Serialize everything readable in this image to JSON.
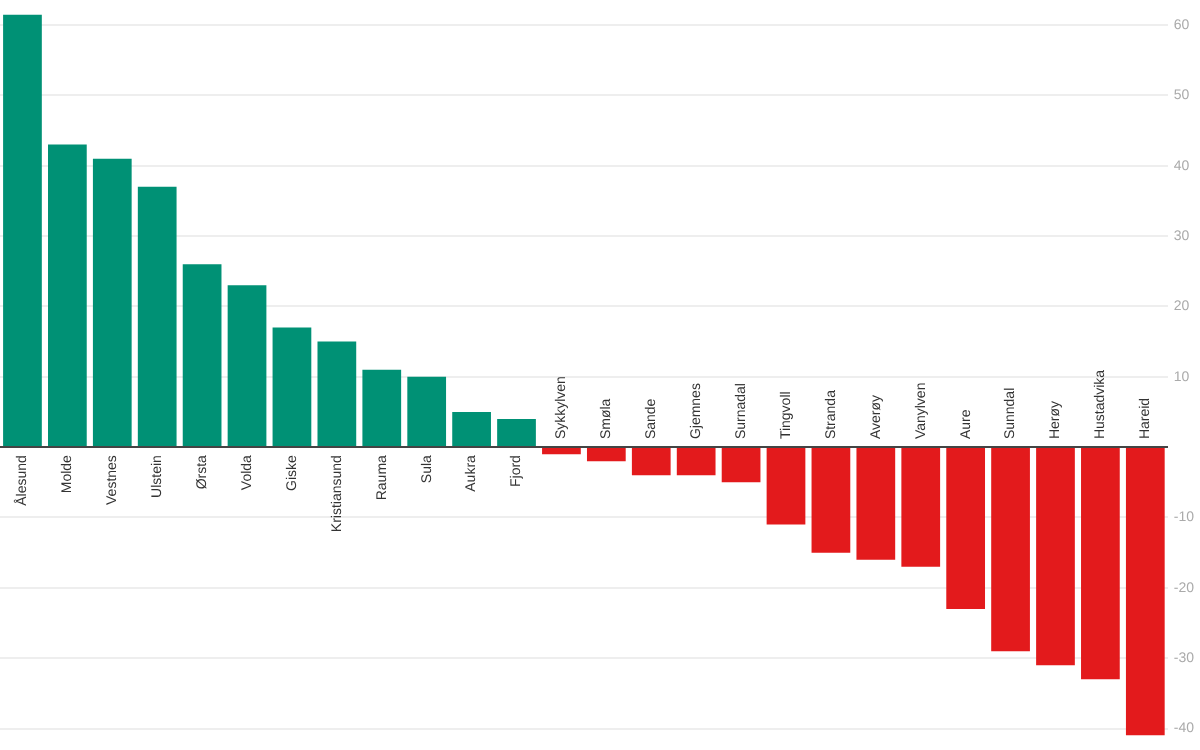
{
  "chart_data": {
    "type": "bar",
    "categories": [
      "Ålesund",
      "Molde",
      "Vestnes",
      "Ulstein",
      "Ørsta",
      "Volda",
      "Giske",
      "Kristiansund",
      "Rauma",
      "Sula",
      "Aukra",
      "Fjord",
      "Sykkylven",
      "Smøla",
      "Sande",
      "Gjemnes",
      "Surnadal",
      "Tingvoll",
      "Stranda",
      "Averøy",
      "Vanylven",
      "Aure",
      "Sunndal",
      "Herøy",
      "Hustadvika",
      "Hareid"
    ],
    "values": [
      61.5,
      43,
      41,
      37,
      26,
      23,
      17,
      15,
      11,
      10,
      5,
      4,
      -1,
      -2,
      -4,
      -4,
      -5,
      -11,
      -15,
      -16,
      -17,
      -23,
      -29,
      -31,
      -33,
      -41
    ],
    "colors": [
      "#009175",
      "#009175",
      "#009175",
      "#009175",
      "#009175",
      "#009175",
      "#009175",
      "#009175",
      "#009175",
      "#009175",
      "#009175",
      "#009175",
      "#e31a1c",
      "#e31a1c",
      "#e31a1c",
      "#e31a1c",
      "#e31a1c",
      "#e31a1c",
      "#e31a1c",
      "#e31a1c",
      "#e31a1c",
      "#e31a1c",
      "#e31a1c",
      "#e31a1c",
      "#e31a1c",
      "#e31a1c"
    ],
    "ylim": [
      -41,
      61.5
    ],
    "yticks": [
      -40,
      -30,
      -20,
      -10,
      10,
      20,
      30,
      40,
      50,
      60
    ],
    "grid": "y"
  }
}
